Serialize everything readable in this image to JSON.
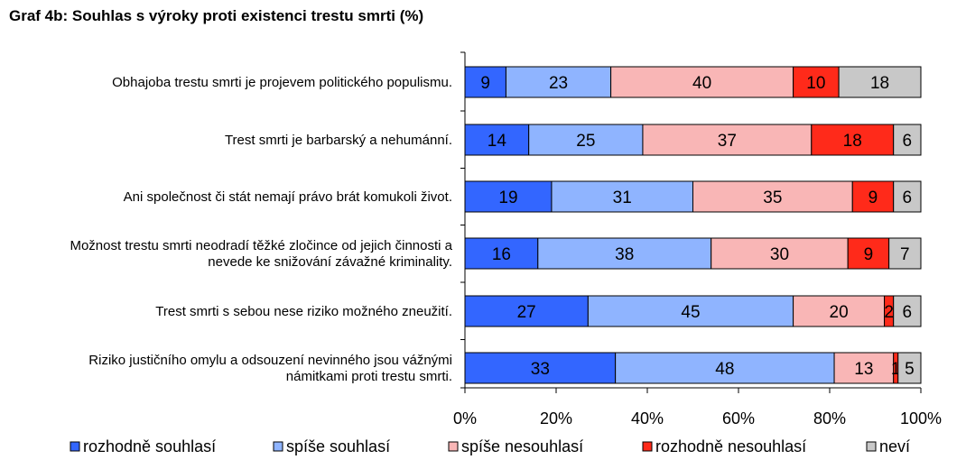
{
  "chart_data": {
    "type": "bar",
    "orientation": "horizontal",
    "stacked": true,
    "title": "Graf 4b: Souhlas s výroky proti existenci trestu smrti (%)",
    "categories": [
      [
        "Obhajoba trestu smrti je projevem politického populismu."
      ],
      [
        "Trest smrti je barbarský a nehumánní."
      ],
      [
        "Ani společnost či stát nemají právo brát komukoli život."
      ],
      [
        "Možnost trestu smrti neodradí těžké zločince od jejich činnosti a",
        "nevede ke snižování závažné kriminality."
      ],
      [
        "Trest smrti s sebou nese riziko možného zneužití."
      ],
      [
        "Riziko justičního omylu a odsouzení nevinného jsou vážnými",
        "námitkami proti trestu smrti."
      ]
    ],
    "series": [
      {
        "name": "rozhodně souhlasí",
        "color": "#3366ff",
        "values": [
          9,
          14,
          19,
          16,
          27,
          33
        ]
      },
      {
        "name": "spíše souhlasí",
        "color": "#8fb4ff",
        "values": [
          23,
          25,
          31,
          38,
          45,
          48
        ]
      },
      {
        "name": "spíše nesouhlasí",
        "color": "#f9b6b6",
        "values": [
          40,
          37,
          35,
          30,
          20,
          13
        ]
      },
      {
        "name": "rozhodně nesouhlasí",
        "color": "#ff2a1a",
        "values": [
          10,
          18,
          9,
          9,
          2,
          1
        ]
      },
      {
        "name": "neví",
        "color": "#c8c8c8",
        "values": [
          18,
          6,
          6,
          7,
          6,
          5
        ]
      }
    ],
    "xlim": [
      0,
      100
    ],
    "xticks": [
      "0%",
      "20%",
      "40%",
      "60%",
      "80%",
      "100%"
    ],
    "grid": false,
    "legend": "bottom"
  }
}
